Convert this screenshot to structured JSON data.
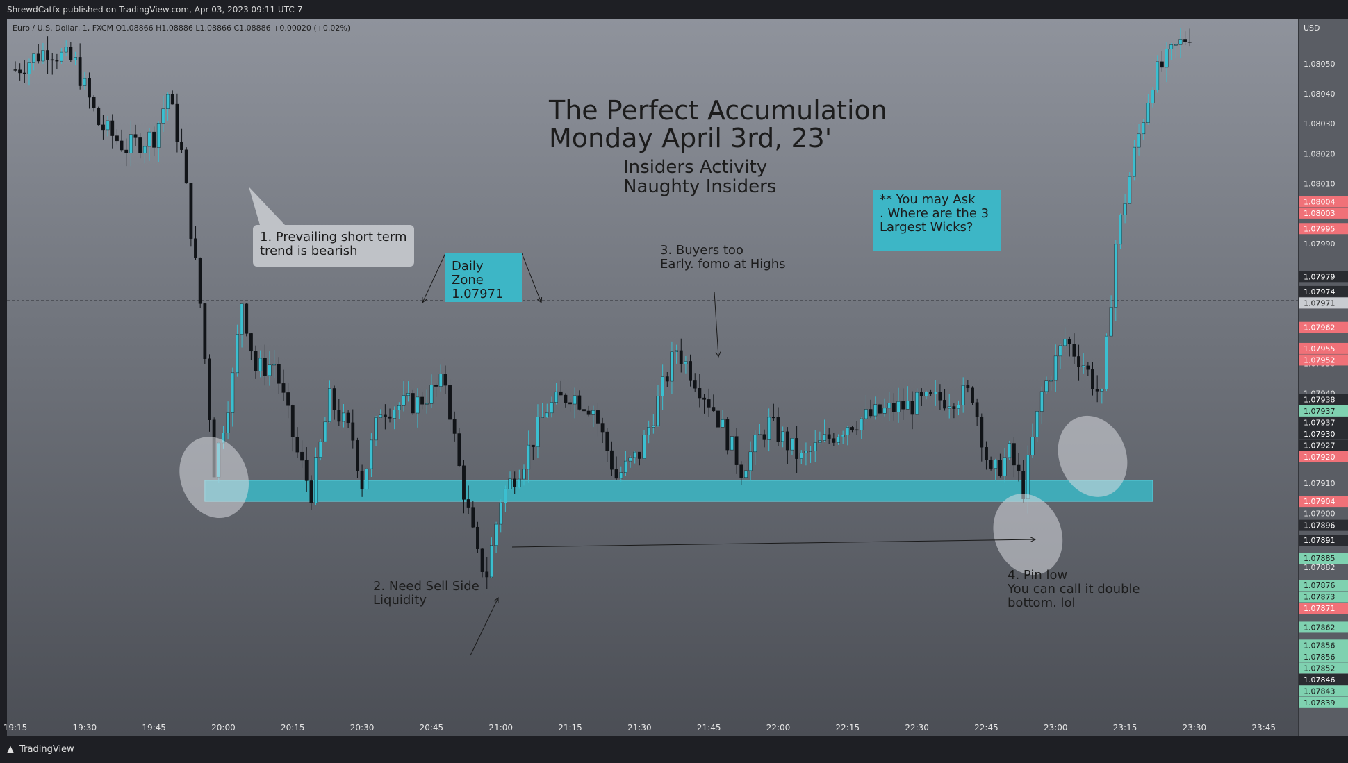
{
  "header": {
    "publisher": "ShrewdCatfx published on TradingView.com, Apr 03, 2023 09:11 UTC-7"
  },
  "legend": {
    "symbol_line": "Euro / U.S. Dollar, 1, FXCM  O1.08866  H1.08886  L1.08866  C1.08886  +0.00020 (+0.02%)"
  },
  "footer": {
    "brand": "TradingView"
  },
  "price_axis": {
    "currency": "USD"
  },
  "annotations": {
    "title_line1": "The Perfect Accumulation",
    "title_line2": "Monday April 3rd, 23'",
    "subtitle_line1": "Insiders Activity",
    "subtitle_line2": "Naughty Insiders",
    "note1": "1. Prevailing short term\ntrend is bearish",
    "daily_zone": "Daily Zone\n1.07971",
    "note2": "2. Need Sell Side\nLiquidity",
    "note3": "3. Buyers too\nEarly. fomo at Highs",
    "note4": "4. Pin low\nYou can call it double\nbottom. lol",
    "note_wicks": "** You may Ask\n. Where are the 3\nLargest Wicks?"
  },
  "colors": {
    "up": "#3bbfd0",
    "down": "#111418",
    "zone": "#3bb7c6",
    "tag_red": "#f07178",
    "tag_green": "#7fd1b0",
    "tag_dark": "#2a2c31",
    "tag_gray": "#c9ccd1"
  },
  "chart_data": {
    "type": "candlestick",
    "ylim": [
      1.07835,
      1.08062
    ],
    "xlim": [
      "19:15",
      "23:50"
    ],
    "x_ticks": [
      "19:15",
      "19:30",
      "19:45",
      "20:00",
      "20:15",
      "20:30",
      "20:45",
      "21:00",
      "21:15",
      "21:30",
      "21:45",
      "22:00",
      "22:15",
      "22:30",
      "22:45",
      "23:00",
      "23:15",
      "23:30",
      "23:45"
    ],
    "y_ticks": [
      "1.08050",
      "1.08040",
      "1.08030",
      "1.08020",
      "1.08010",
      "1.08000",
      "1.07990",
      "1.07950",
      "1.07940",
      "1.07910",
      "1.07900",
      "1.07882"
    ],
    "price_tags": [
      {
        "v": "1.08004",
        "c": "red"
      },
      {
        "v": "1.08003",
        "c": "red"
      },
      {
        "v": "1.07995",
        "c": "red"
      },
      {
        "v": "1.07979",
        "c": "dark"
      },
      {
        "v": "1.07974",
        "c": "dark"
      },
      {
        "v": "1.07971",
        "c": "gray"
      },
      {
        "v": "1.07962",
        "c": "red"
      },
      {
        "v": "1.07955",
        "c": "red"
      },
      {
        "v": "1.07952",
        "c": "red"
      },
      {
        "v": "1.07938",
        "c": "dark"
      },
      {
        "v": "1.07937",
        "c": "green"
      },
      {
        "v": "1.07937",
        "c": "dark"
      },
      {
        "v": "1.07930",
        "c": "dark"
      },
      {
        "v": "1.07927",
        "c": "dark"
      },
      {
        "v": "1.07920",
        "c": "red"
      },
      {
        "v": "1.07904",
        "c": "red"
      },
      {
        "v": "1.07896",
        "c": "dark"
      },
      {
        "v": "1.07891",
        "c": "dark"
      },
      {
        "v": "1.07885",
        "c": "green"
      },
      {
        "v": "1.07876",
        "c": "green"
      },
      {
        "v": "1.07873",
        "c": "green"
      },
      {
        "v": "1.07871",
        "c": "red"
      },
      {
        "v": "1.07862",
        "c": "green"
      },
      {
        "v": "1.07856",
        "c": "green"
      },
      {
        "v": "1.07856",
        "c": "green"
      },
      {
        "v": "1.07852",
        "c": "green"
      },
      {
        "v": "1.07846",
        "c": "dark"
      },
      {
        "v": "1.07843",
        "c": "green"
      },
      {
        "v": "1.07839",
        "c": "green"
      }
    ],
    "dashed_level": 1.07971,
    "zone": {
      "from_time": "19:56",
      "to_time": "23:21",
      "low": 1.07904,
      "high": 1.07911
    },
    "segments": [
      {
        "t": "19:15",
        "p": 1.08048
      },
      {
        "t": "19:22",
        "p": 1.08055
      },
      {
        "t": "19:28",
        "p": 1.0805
      },
      {
        "t": "19:33",
        "p": 1.0803
      },
      {
        "t": "19:39",
        "p": 1.08022
      },
      {
        "t": "19:45",
        "p": 1.08026
      },
      {
        "t": "19:48",
        "p": 1.0804
      },
      {
        "t": "19:51",
        "p": 1.0802
      },
      {
        "t": "19:55",
        "p": 1.0797
      },
      {
        "t": "19:58",
        "p": 1.07915
      },
      {
        "t": "20:02",
        "p": 1.07945
      },
      {
        "t": "20:04",
        "p": 1.07971
      },
      {
        "t": "20:07",
        "p": 1.07948
      },
      {
        "t": "20:11",
        "p": 1.0795
      },
      {
        "t": "20:16",
        "p": 1.0792
      },
      {
        "t": "20:19",
        "p": 1.07907
      },
      {
        "t": "20:23",
        "p": 1.07938
      },
      {
        "t": "20:28",
        "p": 1.07925
      },
      {
        "t": "20:30",
        "p": 1.0791
      },
      {
        "t": "20:34",
        "p": 1.07935
      },
      {
        "t": "20:42",
        "p": 1.07937
      },
      {
        "t": "20:48",
        "p": 1.07944
      },
      {
        "t": "20:51",
        "p": 1.07915
      },
      {
        "t": "20:55",
        "p": 1.07885
      },
      {
        "t": "20:57",
        "p": 1.0788
      },
      {
        "t": "21:00",
        "p": 1.07905
      },
      {
        "t": "21:05",
        "p": 1.07918
      },
      {
        "t": "21:10",
        "p": 1.07935
      },
      {
        "t": "21:15",
        "p": 1.0794
      },
      {
        "t": "21:20",
        "p": 1.07935
      },
      {
        "t": "21:25",
        "p": 1.07912
      },
      {
        "t": "21:30",
        "p": 1.0792
      },
      {
        "t": "21:38",
        "p": 1.07955
      },
      {
        "t": "21:46",
        "p": 1.07935
      },
      {
        "t": "21:52",
        "p": 1.07915
      },
      {
        "t": "21:58",
        "p": 1.0793
      },
      {
        "t": "22:05",
        "p": 1.07918
      },
      {
        "t": "22:15",
        "p": 1.0793
      },
      {
        "t": "22:25",
        "p": 1.07935
      },
      {
        "t": "22:35",
        "p": 1.07938
      },
      {
        "t": "22:42",
        "p": 1.0794
      },
      {
        "t": "22:46",
        "p": 1.07912
      },
      {
        "t": "22:50",
        "p": 1.0792
      },
      {
        "t": "22:53",
        "p": 1.07908
      },
      {
        "t": "22:57",
        "p": 1.0794
      },
      {
        "t": "23:02",
        "p": 1.07958
      },
      {
        "t": "23:06",
        "p": 1.0795
      },
      {
        "t": "23:10",
        "p": 1.07938
      },
      {
        "t": "23:13",
        "p": 1.0799
      },
      {
        "t": "23:17",
        "p": 1.0802
      },
      {
        "t": "23:21",
        "p": 1.08045
      },
      {
        "t": "23:26",
        "p": 1.08055
      },
      {
        "t": "23:30",
        "p": 1.08062
      }
    ],
    "ellipses": [
      {
        "t": "19:58",
        "p": 1.07912
      },
      {
        "t": "23:08",
        "p": 1.07919
      },
      {
        "t": "22:54",
        "p": 1.07893
      }
    ]
  }
}
